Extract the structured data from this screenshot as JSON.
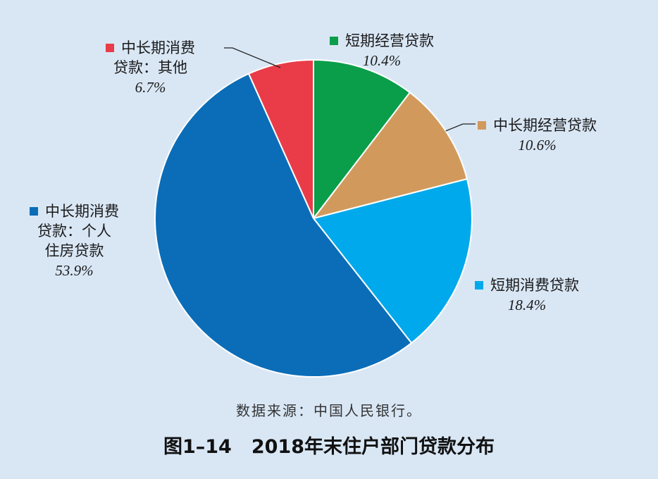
{
  "chart_data": {
    "type": "pie",
    "title": "2018年末住户部门贷款分布",
    "figure_number": "图1–14",
    "source": "数据来源：中国人民银行。",
    "slices": [
      {
        "label_lines": [
          "短期经营贷款"
        ],
        "value": 10.4,
        "value_text": "10.4%",
        "color": "#0a9e4a"
      },
      {
        "label_lines": [
          "中长期经营贷款"
        ],
        "value": 10.6,
        "value_text": "10.6%",
        "color": "#d19a5c"
      },
      {
        "label_lines": [
          "短期消费贷款"
        ],
        "value": 18.4,
        "value_text": "18.4%",
        "color": "#00a9ec"
      },
      {
        "label_lines": [
          "中长期消费",
          "贷款：个人",
          "住房贷款"
        ],
        "value": 53.9,
        "value_text": "53.9%",
        "color": "#0b6db8"
      },
      {
        "label_lines": [
          "中长期消费",
          "贷款：其他"
        ],
        "value": 6.7,
        "value_text": "6.7%",
        "color": "#e93c48"
      }
    ]
  }
}
